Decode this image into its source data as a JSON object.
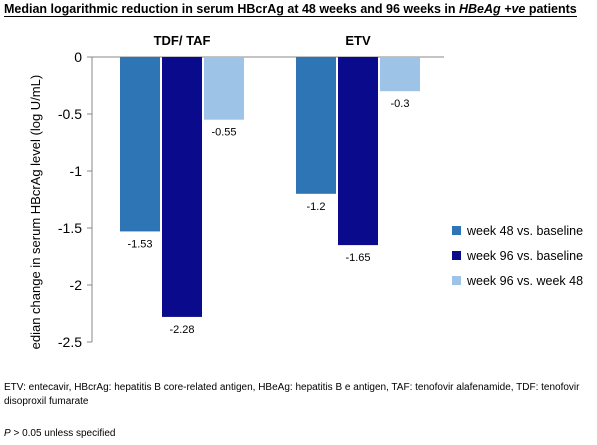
{
  "title": {
    "prefix": "Median logarithmic reduction in serum HBcrAg at 48 weeks and 96 weeks in ",
    "italic": "HBeAg +ve",
    "suffix": " patients"
  },
  "chart_data": {
    "type": "bar",
    "categories": [
      "TDF/ TAF",
      "ETV"
    ],
    "series": [
      {
        "name": "week 48 vs. baseline",
        "values": [
          -1.53,
          -1.2
        ],
        "labels": [
          "-1.53",
          "-1.2"
        ],
        "color": "#2e75b6"
      },
      {
        "name": "week 96 vs. baseline",
        "values": [
          -2.28,
          -1.65
        ],
        "labels": [
          "-2.28",
          "-1.65"
        ],
        "color": "#0a0a8c"
      },
      {
        "name": "week 96 vs. week 48",
        "values": [
          -0.55,
          -0.3
        ],
        "labels": [
          "-0.55",
          "-0.3"
        ],
        "color": "#9dc3e6"
      }
    ],
    "ylabel": "Median change in serum HBcrAg level (log U/mL)",
    "xlabel": "",
    "ylim": [
      -2.5,
      0
    ],
    "yticks": [
      0,
      -0.5,
      -1,
      -1.5,
      -2,
      -2.5
    ],
    "ytick_labels": [
      "0",
      "-0.5",
      "-1",
      "-1.5",
      "-2",
      "-2.5"
    ],
    "legend_position": "right",
    "grid": false
  },
  "footnote": "ETV: entecavir, HBcrAg: hepatitis B core-related antigen, HBeAg: hepatitis B e antigen, TAF: tenofovir alafenamide, TDF: tenofovir disoproxil fumarate",
  "pnote": {
    "p": "P",
    "text": " > 0.05 unless specified"
  }
}
